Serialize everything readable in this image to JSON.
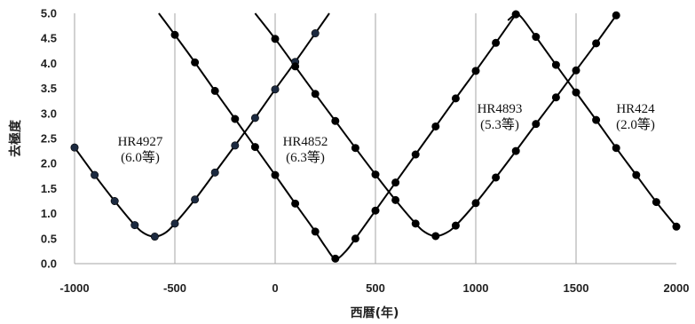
{
  "chart_data": {
    "type": "line",
    "xlabel": "西暦(年)",
    "ylabel": "去極度",
    "xlim": [
      -1000,
      2000
    ],
    "ylim": [
      0.0,
      5.0
    ],
    "xticks": [
      "-1000",
      "-500",
      "0",
      "500",
      "1000",
      "1500",
      "2000"
    ],
    "yticks": [
      "0.0",
      "0.5",
      "1.0",
      "1.5",
      "2.0",
      "2.5",
      "3.0",
      "3.5",
      "4.0",
      "4.5",
      "5.0"
    ],
    "vertical_grid": true,
    "horizontal_grid": false,
    "series": [
      {
        "name": "HR4927",
        "label": [
          "HR4927",
          "(6.0等)"
        ],
        "marker_color": "#1c2a40",
        "points": [
          [
            -1000,
            2.32
          ],
          [
            -900,
            1.77
          ],
          [
            -800,
            1.25
          ],
          [
            -700,
            0.77
          ],
          [
            -600,
            0.54
          ],
          [
            -500,
            0.8
          ],
          [
            -400,
            1.28
          ],
          [
            -300,
            1.82
          ],
          [
            -200,
            2.36
          ],
          [
            -100,
            2.91
          ],
          [
            0,
            3.48
          ],
          [
            100,
            4.03
          ],
          [
            200,
            4.6
          ]
        ],
        "curve": [
          [
            -1000,
            2.32
          ],
          [
            -900,
            1.77
          ],
          [
            -800,
            1.25
          ],
          [
            -700,
            0.77
          ],
          [
            -650,
            0.6
          ],
          [
            -600,
            0.54
          ],
          [
            -550,
            0.61
          ],
          [
            -500,
            0.8
          ],
          [
            -400,
            1.28
          ],
          [
            -300,
            1.82
          ],
          [
            -200,
            2.36
          ],
          [
            -100,
            2.91
          ],
          [
            0,
            3.48
          ],
          [
            100,
            4.03
          ],
          [
            200,
            4.6
          ],
          [
            270,
            5.0
          ]
        ]
      },
      {
        "name": "HR4852",
        "label": [
          "HR4852",
          "(6.3等)"
        ],
        "marker_color": "#000000",
        "points": [
          [
            -500,
            4.57
          ],
          [
            -400,
            4.02
          ],
          [
            -300,
            3.45
          ],
          [
            -200,
            2.89
          ],
          [
            -100,
            2.33
          ],
          [
            0,
            1.77
          ],
          [
            100,
            1.2
          ],
          [
            200,
            0.64
          ],
          [
            300,
            0.1
          ],
          [
            400,
            0.5
          ],
          [
            500,
            1.06
          ],
          [
            600,
            1.62
          ],
          [
            700,
            2.18
          ],
          [
            800,
            2.74
          ],
          [
            900,
            3.3
          ],
          [
            1000,
            3.85
          ],
          [
            1100,
            4.41
          ],
          [
            1200,
            4.98
          ]
        ],
        "curve": [
          [
            -580,
            5.0
          ],
          [
            -500,
            4.57
          ],
          [
            -400,
            4.02
          ],
          [
            -300,
            3.45
          ],
          [
            -200,
            2.89
          ],
          [
            -100,
            2.33
          ],
          [
            0,
            1.77
          ],
          [
            100,
            1.2
          ],
          [
            200,
            0.64
          ],
          [
            250,
            0.34
          ],
          [
            300,
            0.1
          ],
          [
            350,
            0.24
          ],
          [
            400,
            0.5
          ],
          [
            500,
            1.06
          ],
          [
            600,
            1.62
          ],
          [
            700,
            2.18
          ],
          [
            800,
            2.74
          ],
          [
            900,
            3.3
          ],
          [
            1000,
            3.85
          ],
          [
            1100,
            4.41
          ],
          [
            1200,
            4.98
          ]
        ]
      },
      {
        "name": "HR4893",
        "label": [
          "HR4893",
          "(5.3等)"
        ],
        "marker_color": "#000000",
        "points": [
          [
            0,
            4.49
          ],
          [
            100,
            3.94
          ],
          [
            200,
            3.39
          ],
          [
            300,
            2.85
          ],
          [
            400,
            2.31
          ],
          [
            500,
            1.78
          ],
          [
            600,
            1.27
          ],
          [
            700,
            0.8
          ],
          [
            800,
            0.55
          ],
          [
            900,
            0.76
          ],
          [
            1000,
            1.21
          ],
          [
            1100,
            1.72
          ],
          [
            1200,
            2.25
          ],
          [
            1300,
            2.79
          ],
          [
            1400,
            3.32
          ],
          [
            1500,
            3.86
          ],
          [
            1600,
            4.4
          ],
          [
            1700,
            4.96
          ]
        ],
        "curve": [
          [
            -100,
            5.0
          ],
          [
            0,
            4.49
          ],
          [
            100,
            3.94
          ],
          [
            200,
            3.39
          ],
          [
            300,
            2.85
          ],
          [
            400,
            2.31
          ],
          [
            500,
            1.78
          ],
          [
            600,
            1.27
          ],
          [
            700,
            0.8
          ],
          [
            750,
            0.62
          ],
          [
            800,
            0.55
          ],
          [
            850,
            0.61
          ],
          [
            900,
            0.76
          ],
          [
            1000,
            1.21
          ],
          [
            1100,
            1.72
          ],
          [
            1200,
            2.25
          ],
          [
            1300,
            2.79
          ],
          [
            1400,
            3.32
          ],
          [
            1500,
            3.86
          ],
          [
            1600,
            4.4
          ],
          [
            1700,
            4.96
          ]
        ]
      },
      {
        "name": "HR424",
        "label": [
          "HR424",
          "(2.0等)"
        ],
        "marker_color": "#000000",
        "points": [
          [
            1200,
            4.98
          ],
          [
            1300,
            4.53
          ],
          [
            1400,
            3.97
          ],
          [
            1500,
            3.42
          ],
          [
            1600,
            2.87
          ],
          [
            1700,
            2.31
          ],
          [
            1800,
            1.77
          ],
          [
            1900,
            1.23
          ],
          [
            2000,
            0.74
          ]
        ],
        "curve": [
          [
            1160,
            4.86
          ],
          [
            1200,
            4.98
          ],
          [
            1230,
            4.91
          ],
          [
            1300,
            4.53
          ],
          [
            1400,
            3.97
          ],
          [
            1500,
            3.42
          ],
          [
            1600,
            2.87
          ],
          [
            1700,
            2.31
          ],
          [
            1800,
            1.77
          ],
          [
            1900,
            1.23
          ],
          [
            2000,
            0.74
          ]
        ]
      }
    ]
  }
}
